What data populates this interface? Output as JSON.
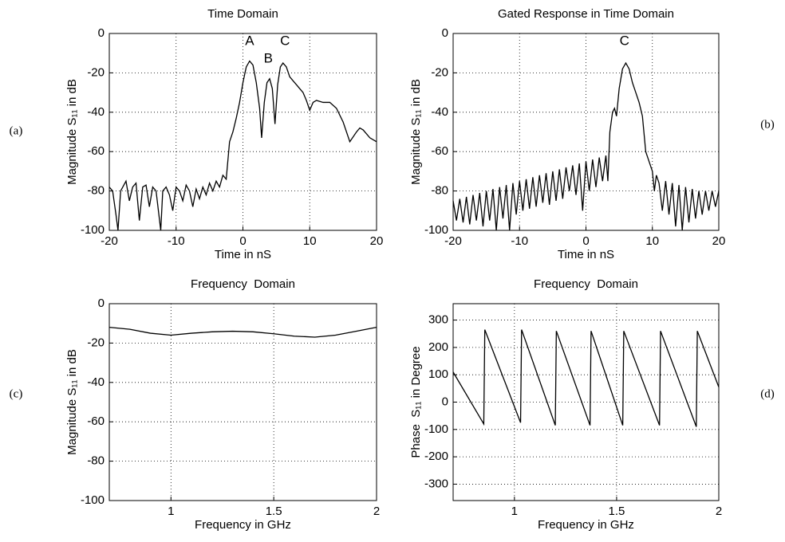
{
  "chart_data": [
    {
      "type": "line",
      "title": "Time Domain",
      "xlabel": "Time in nS",
      "ylabel": "Magnitude S₁₁ in dB",
      "panel_label": "(a)",
      "color": "#000000",
      "grid": true,
      "xlim": [
        -20,
        20
      ],
      "ylim": [
        -100,
        0
      ],
      "xticks": [
        -20,
        -10,
        0,
        10,
        20
      ],
      "yticks": [
        -100,
        -80,
        -60,
        -40,
        -20,
        0
      ],
      "x": [
        -20,
        -19.5,
        -19,
        -18.7,
        -18.3,
        -17.5,
        -17,
        -16.5,
        -16,
        -15.5,
        -15,
        -14.5,
        -14,
        -13.5,
        -13,
        -12.3,
        -12,
        -11.5,
        -11,
        -10.5,
        -10,
        -9.5,
        -9,
        -8.5,
        -8,
        -7.5,
        -7,
        -6.5,
        -6,
        -5.5,
        -5,
        -4.5,
        -4,
        -3.5,
        -3,
        -2.5,
        -2,
        -1.5,
        -1,
        -0.5,
        0,
        0.5,
        1,
        1.5,
        2,
        2.5,
        2.8,
        3.2,
        3.6,
        4,
        4.4,
        4.8,
        5.2,
        5.6,
        6,
        6.5,
        7,
        7.5,
        8,
        8.5,
        9,
        9.5,
        10,
        10.5,
        11,
        12,
        13,
        14,
        15,
        16,
        17,
        17.5,
        18,
        19,
        20
      ],
      "values": [
        -78,
        -80,
        -92,
        -100,
        -80,
        -75,
        -85,
        -78,
        -76,
        -95,
        -78,
        -77,
        -88,
        -78,
        -80,
        -100,
        -80,
        -78,
        -82,
        -90,
        -78,
        -80,
        -85,
        -77,
        -80,
        -88,
        -79,
        -84,
        -78,
        -82,
        -76,
        -80,
        -75,
        -78,
        -72,
        -74,
        -55,
        -50,
        -43,
        -35,
        -25,
        -17,
        -14,
        -16,
        -25,
        -38,
        -53,
        -35,
        -25,
        -23,
        -28,
        -46,
        -26,
        -17,
        -15,
        -17,
        -22,
        -24,
        -26,
        -28,
        -30,
        -34,
        -39,
        -35,
        -34,
        -35,
        -35,
        -38,
        -45,
        -55,
        -50,
        -48,
        -49,
        -53,
        -55
      ],
      "annotations": [
        {
          "text": "A",
          "x": 1,
          "y": -4
        },
        {
          "text": "B",
          "x": 3.8,
          "y": -13
        },
        {
          "text": "C",
          "x": 6.3,
          "y": -4
        }
      ]
    },
    {
      "type": "line",
      "title": "Gated Response in Time Domain",
      "xlabel": "Time in nS",
      "ylabel": "Magnitude S₁₁ in dB",
      "panel_label": "(b)",
      "color": "#000000",
      "grid": true,
      "xlim": [
        -20,
        20
      ],
      "ylim": [
        -100,
        0
      ],
      "xticks": [
        -20,
        -10,
        0,
        10,
        20
      ],
      "yticks": [
        -100,
        -80,
        -60,
        -40,
        -20,
        0
      ],
      "x": [
        -20,
        -19.5,
        -19,
        -18.5,
        -18,
        -17.5,
        -17,
        -16.5,
        -16,
        -15.5,
        -15,
        -14.5,
        -14,
        -13.5,
        -13,
        -12.5,
        -12,
        -11.5,
        -11,
        -10.5,
        -10,
        -9.5,
        -9,
        -8.5,
        -8,
        -7.5,
        -7,
        -6.5,
        -6,
        -5.5,
        -5,
        -4.5,
        -4,
        -3.5,
        -3,
        -2.5,
        -2,
        -1.5,
        -1,
        -0.5,
        0,
        0.5,
        1,
        1.5,
        2,
        2.5,
        3,
        3.3,
        3.6,
        4,
        4.3,
        4.6,
        5,
        5.5,
        6,
        6.5,
        7,
        7.5,
        8,
        8.5,
        9,
        9.5,
        10,
        10.3,
        10.6,
        11,
        11.5,
        12,
        12.5,
        13,
        13.5,
        14,
        14.5,
        15,
        15.5,
        16,
        16.5,
        17,
        17.5,
        18,
        18.5,
        19,
        19.5,
        20
      ],
      "values": [
        -85,
        -95,
        -84,
        -96,
        -83,
        -97,
        -82,
        -95,
        -81,
        -98,
        -80,
        -95,
        -79,
        -100,
        -78,
        -94,
        -77,
        -100,
        -76,
        -92,
        -75,
        -90,
        -74,
        -89,
        -73,
        -88,
        -72,
        -86,
        -71,
        -87,
        -70,
        -85,
        -69,
        -84,
        -68,
        -80,
        -67,
        -82,
        -66,
        -90,
        -65,
        -80,
        -64,
        -78,
        -63,
        -75,
        -62,
        -75,
        -50,
        -40,
        -38,
        -42,
        -28,
        -18,
        -15,
        -18,
        -25,
        -30,
        -35,
        -42,
        -60,
        -65,
        -70,
        -80,
        -72,
        -76,
        -90,
        -75,
        -92,
        -76,
        -98,
        -77,
        -100,
        -78,
        -96,
        -79,
        -94,
        -80,
        -92,
        -80,
        -90,
        -80,
        -88,
        -80
      ],
      "annotations": [
        {
          "text": "C",
          "x": 5.8,
          "y": -4
        }
      ]
    },
    {
      "type": "line",
      "title": "Frequency  Domain",
      "xlabel": "Frequency in GHz",
      "ylabel": "Magnitude S₁₁ in dB",
      "panel_label": "(c)",
      "color": "#000000",
      "grid": true,
      "xlim": [
        0.7,
        2
      ],
      "ylim": [
        -100,
        0
      ],
      "xticks": [
        1,
        1.5,
        2
      ],
      "yticks": [
        -100,
        -80,
        -60,
        -40,
        -20,
        0
      ],
      "x": [
        0.7,
        0.8,
        0.9,
        1.0,
        1.1,
        1.2,
        1.3,
        1.4,
        1.5,
        1.6,
        1.7,
        1.8,
        1.9,
        2.0
      ],
      "values": [
        -12,
        -13,
        -15,
        -16,
        -15,
        -14.3,
        -14,
        -14.3,
        -15.3,
        -16.5,
        -17,
        -16,
        -14,
        -12
      ]
    },
    {
      "type": "line",
      "title": "Frequency  Domain",
      "xlabel": "Frequency in GHz",
      "ylabel": "Phase  S₁₁ in Degree",
      "panel_label": "(d)",
      "color": "#000000",
      "grid": true,
      "xlim": [
        0.7,
        2
      ],
      "ylim": [
        -360,
        360
      ],
      "xticks": [
        1,
        1.5,
        2
      ],
      "yticks": [
        -300,
        -200,
        -100,
        0,
        100,
        200,
        300
      ],
      "x": [
        0.7,
        0.85,
        0.855,
        1.03,
        1.035,
        1.2,
        1.205,
        1.37,
        1.375,
        1.53,
        1.535,
        1.71,
        1.715,
        1.89,
        1.895,
        2
      ],
      "values": [
        110,
        -80,
        265,
        -75,
        265,
        -85,
        260,
        -85,
        260,
        -85,
        260,
        -85,
        260,
        -90,
        260,
        55
      ]
    }
  ]
}
